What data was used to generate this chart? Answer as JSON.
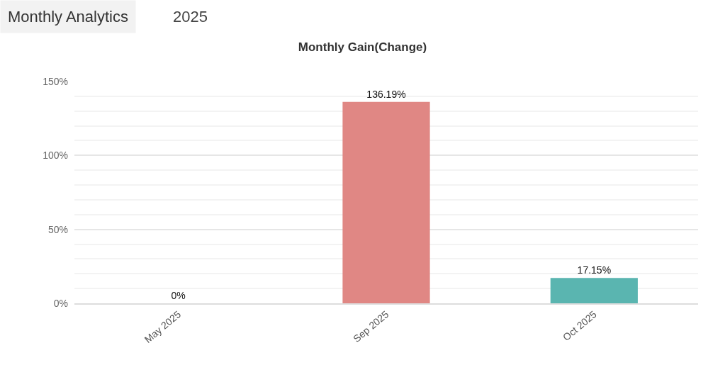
{
  "chart_data": {
    "type": "bar",
    "title": "Monthly Gain(Change)",
    "annotations": [
      "Monthly Analytics",
      "2025"
    ],
    "categories": [
      "May 2025",
      "Sep 2025",
      "Oct 2025"
    ],
    "values": [
      0,
      136.19,
      17.15
    ],
    "colors": [
      "#e08784",
      "#e08784",
      "#5ab5b0"
    ],
    "value_labels": [
      "0%",
      "136.19%",
      "17.15%"
    ],
    "ylim": [
      0,
      150
    ],
    "yticks": [
      {
        "value": 0,
        "label": "0%"
      },
      {
        "value": 50,
        "label": "50%"
      },
      {
        "value": 100,
        "label": "100%"
      },
      {
        "value": 150,
        "label": "150%"
      }
    ],
    "grid": true,
    "legend": false
  }
}
